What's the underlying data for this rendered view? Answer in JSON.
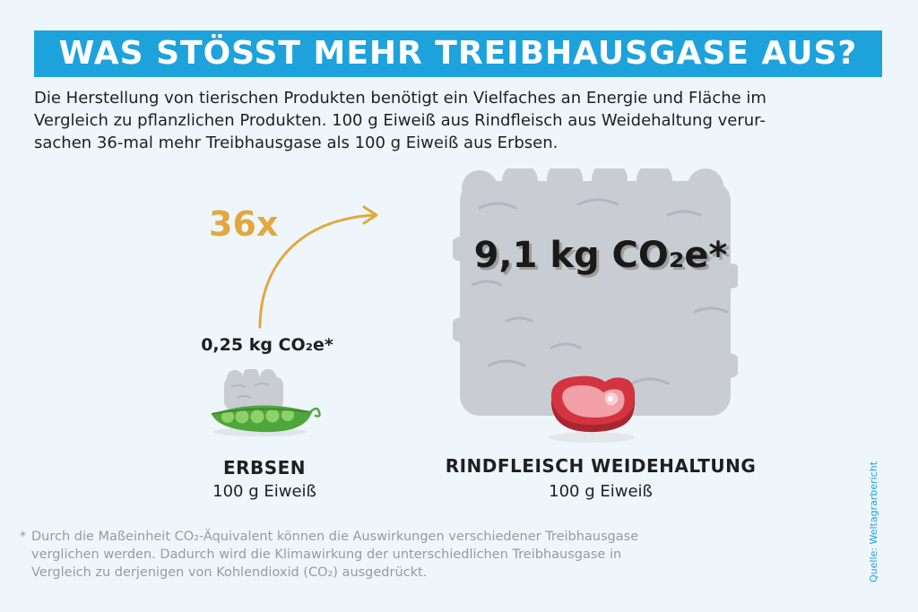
{
  "title": "WAS STÖSST MEHR TREIBHAUSGASE AUS?",
  "intro_lines": [
    "Die Herstellung von tierischen Produkten benötigt ein Vielfaches an Energie und Fläche im",
    "Vergleich zu pflanzlichen Produkten. 100 g Eiweiß aus Rindfleisch aus Weidehaltung verur-",
    "sachen 36-mal mehr Treibhausgase als 100 g Eiweiß aus Erbsen."
  ],
  "factor": "36x",
  "peas": {
    "value": "0,25 kg CO₂e*",
    "label": "ERBSEN",
    "sub": "100 g Eiweiß",
    "icon": "peapod-icon"
  },
  "beef": {
    "value": "9,1 kg CO₂e*",
    "label": "RINDFLEISCH WEIDEHALTUNG",
    "sub": "100 g Eiweiß",
    "icon": "steak-icon"
  },
  "footnote": {
    "marker": "*",
    "lines": [
      "Durch die Maßeinheit CO₂-Äquivalent können die Auswirkungen verschiedener Treibhausgase",
      "verglichen werden. Dadurch wird die Klimawirkung der unterschiedlichen Treibhausgase in",
      "Vergleich zu derjenigen von Kohlendioxid (CO₂) ausgedrückt."
    ]
  },
  "source": "Quelle: Weltagrarbericht",
  "colors": {
    "accent": "#1ea2dc",
    "factor": "#e1a840",
    "cloud": "#c9cdd3",
    "pea": "#5cb848",
    "steak": "#d3343f"
  }
}
